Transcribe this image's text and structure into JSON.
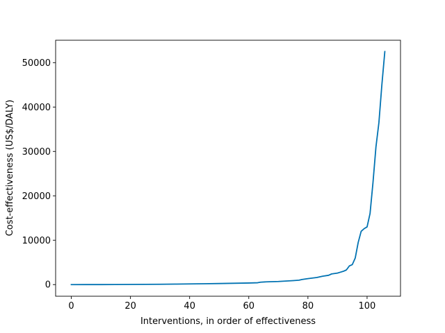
{
  "chart_data": {
    "type": "line",
    "xlabel": "Interventions, in order of effectiveness",
    "ylabel": "Cost-effectiveness (US$/DALY)",
    "xlim": [
      -5.3,
      111.3
    ],
    "ylim": [
      -2620,
      55050
    ],
    "xticks": [
      0,
      20,
      40,
      60,
      80,
      100
    ],
    "yticks": [
      0,
      10000,
      20000,
      30000,
      40000,
      50000
    ],
    "grid": false,
    "line_color": "#0072b2",
    "series": [
      {
        "x": [
          0,
          5,
          10,
          15,
          20,
          25,
          30,
          35,
          40,
          45,
          50,
          55,
          60,
          63,
          64,
          66,
          70,
          72,
          75,
          77,
          78,
          80,
          83,
          85,
          87,
          88,
          90,
          91,
          92,
          93,
          94,
          95,
          96,
          97,
          98,
          99,
          100,
          101,
          102,
          103,
          104,
          105,
          106
        ],
        "values": [
          0,
          5,
          10,
          20,
          35,
          55,
          80,
          110,
          150,
          190,
          240,
          300,
          360,
          420,
          550,
          620,
          700,
          780,
          900,
          1000,
          1150,
          1350,
          1600,
          1900,
          2100,
          2400,
          2600,
          2800,
          3000,
          3300,
          4200,
          4500,
          6000,
          9500,
          12000,
          12600,
          13000,
          16000,
          23000,
          31000,
          36500,
          45000,
          52500
        ]
      }
    ]
  }
}
